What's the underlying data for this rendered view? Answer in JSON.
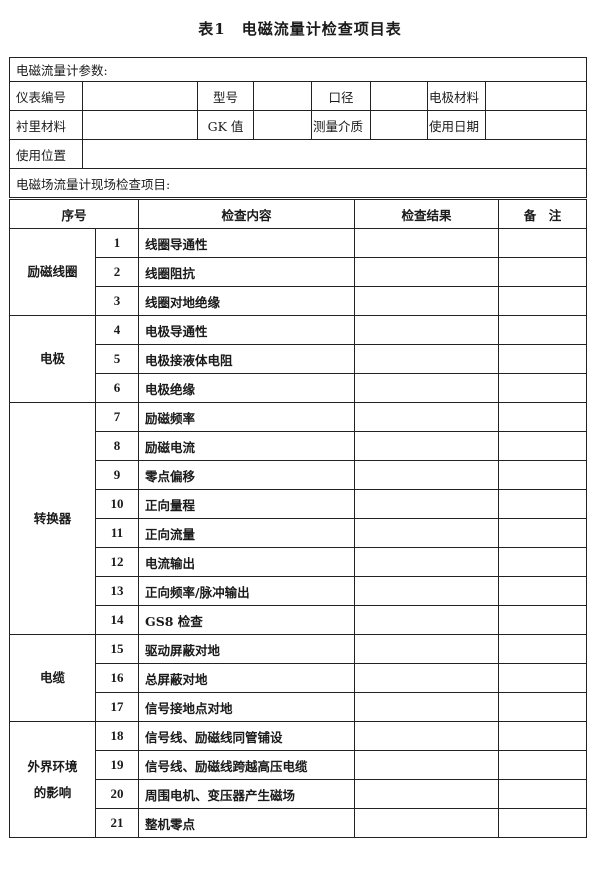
{
  "title": "表1　电磁流量计检查项目表",
  "params": {
    "section_label": "电磁流量计参数:",
    "row1": [
      "仪表编号",
      "型号",
      "口径",
      "电极材料"
    ],
    "row2": [
      "衬里材料",
      "GK 值",
      "测量介质",
      "使用日期"
    ],
    "location_label": "使用位置"
  },
  "inspection": {
    "section_label": "电磁场流量计现场检查项目:",
    "headers": [
      "序号",
      "检查内容",
      "检查结果",
      "备　注"
    ],
    "groups": [
      {
        "name": "励磁线圈",
        "items": [
          [
            "1",
            "线圈导通性"
          ],
          [
            "2",
            "线圈阻抗"
          ],
          [
            "3",
            "线圈对地绝缘"
          ]
        ]
      },
      {
        "name": "电极",
        "items": [
          [
            "4",
            "电极导通性"
          ],
          [
            "5",
            "电极接液体电阻"
          ],
          [
            "6",
            "电极绝缘"
          ]
        ]
      },
      {
        "name": "转换器",
        "items": [
          [
            "7",
            "励磁频率"
          ],
          [
            "8",
            "励磁电流"
          ],
          [
            "9",
            "零点偏移"
          ],
          [
            "10",
            "正向量程"
          ],
          [
            "11",
            "正向流量"
          ],
          [
            "12",
            "电流输出"
          ],
          [
            "13",
            "正向频率/脉冲输出"
          ],
          [
            "14",
            "GS8 检查"
          ]
        ]
      },
      {
        "name": "电缆",
        "items": [
          [
            "15",
            "驱动屏蔽对地"
          ],
          [
            "16",
            "总屏蔽对地"
          ],
          [
            "17",
            "信号接地点对地"
          ]
        ]
      },
      {
        "name": "外界环境的影响",
        "items": [
          [
            "18",
            "信号线、励磁线同管铺设"
          ],
          [
            "19",
            "信号线、励磁线跨越高压电缆"
          ],
          [
            "20",
            "周围电机、变压器产生磁场"
          ],
          [
            "21",
            "整机零点"
          ]
        ]
      }
    ]
  }
}
